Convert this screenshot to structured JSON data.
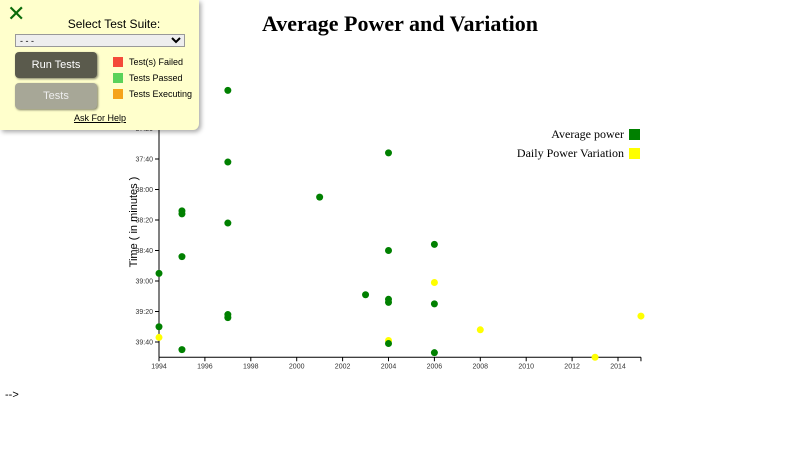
{
  "panel": {
    "close_icon": "close-x-icon",
    "select_label": "Select Test Suite:",
    "select_value": "- - -",
    "run_label": "Run Tests",
    "tests_label": "Tests",
    "legend": [
      {
        "label": "Test(s) Failed",
        "color": "#f44a3a"
      },
      {
        "label": "Tests Passed",
        "color": "#5ad25a"
      },
      {
        "label": "Tests Executing",
        "color": "#f5a31a"
      }
    ],
    "help_label": "Ask For Help"
  },
  "footer_text": "-->",
  "chart_data": {
    "type": "scatter",
    "title": "Average Power and Variation",
    "xlabel": "",
    "ylabel": "Time ( in minutes )",
    "xlim": [
      1994,
      2015
    ],
    "xticks": [
      "1994",
      "1996",
      "1998",
      "2000",
      "2002",
      "2004",
      "2006",
      "2008",
      "2010",
      "2012",
      "2014"
    ],
    "yticks": [
      "37:20",
      "37:40",
      "38:00",
      "38:20",
      "38:40",
      "39:00",
      "39:20",
      "39:40"
    ],
    "ylim": [
      "36:20",
      "39:50"
    ],
    "y_inverted": true,
    "legend_position": "top-right",
    "series": [
      {
        "name": "Average power",
        "color": "#008000",
        "points": [
          [
            1994,
            "38:55"
          ],
          [
            1994,
            "39:30"
          ],
          [
            1995,
            "38:14"
          ],
          [
            1995,
            "38:16"
          ],
          [
            1995,
            "38:44"
          ],
          [
            1995,
            "39:45"
          ],
          [
            1997,
            "36:55"
          ],
          [
            1997,
            "37:42"
          ],
          [
            1997,
            "38:22"
          ],
          [
            1997,
            "39:22"
          ],
          [
            1997,
            "39:24"
          ],
          [
            2001,
            "38:05"
          ],
          [
            2003,
            "39:09"
          ],
          [
            2004,
            "37:36"
          ],
          [
            2004,
            "38:40"
          ],
          [
            2004,
            "39:12"
          ],
          [
            2004,
            "39:14"
          ],
          [
            2004,
            "39:41"
          ],
          [
            2006,
            "38:36"
          ],
          [
            2006,
            "39:15"
          ],
          [
            2006,
            "39:47"
          ]
        ]
      },
      {
        "name": "Daily Power Variation",
        "color": "#ffff00",
        "points": [
          [
            1994,
            "39:37"
          ],
          [
            2004,
            "39:39"
          ],
          [
            2006,
            "39:01"
          ],
          [
            2008,
            "39:32"
          ],
          [
            2013,
            "39:50"
          ],
          [
            2015,
            "39:23"
          ]
        ]
      }
    ]
  }
}
